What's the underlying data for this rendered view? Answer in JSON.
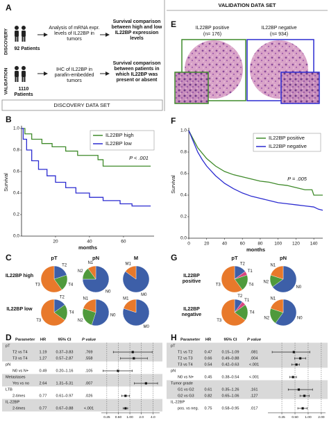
{
  "panel_labels": [
    "A",
    "B",
    "C",
    "D",
    "E",
    "F",
    "G",
    "H"
  ],
  "workflow": {
    "discovery": {
      "label": "DISCOVERY",
      "patients": "92 Patients",
      "step1": "Analysis of mRNA expr. levels of IL22BP in tumors",
      "step2": "Survival comparison between high and low IL22BP expression levels"
    },
    "validation": {
      "label": "VALIDATION",
      "patients": "1110 Patients",
      "step1": "IHC of IL22BP in parafin-embedded tumors",
      "step2": "Survival comparison between patients in which IL22BP was present or absent"
    }
  },
  "headers": {
    "discovery": "DISCOVERY DATA SET",
    "validation": "VALIDATION DATA SET"
  },
  "images": {
    "positive": {
      "label": "IL22BP positive",
      "n": "(n= 176)"
    },
    "negative": {
      "label": "IL22BP negative",
      "n": "(n= 934)"
    }
  },
  "chart_data": [
    {
      "type": "line",
      "x_label": "months",
      "y_label": "Survival",
      "annotation": "P < .001",
      "legend": "upper right",
      "xlim": [
        0,
        78
      ],
      "xticks": [
        20,
        40,
        60
      ],
      "ylim": [
        0,
        1
      ],
      "yticks": [
        {
          "value": 0,
          "label": "0.0"
        },
        {
          "value": 0.2,
          "label": "0.2"
        },
        {
          "value": 0.4,
          "label": "0.4"
        },
        {
          "value": 0.6,
          "label": "0.6"
        },
        {
          "value": 0.8,
          "label": "0.8"
        },
        {
          "value": 1,
          "label": "1.0"
        }
      ],
      "series": [
        {
          "name": "IL22BP high",
          "color": "#3f8a2a",
          "x": [
            0,
            2,
            2,
            6,
            6,
            12,
            12,
            18,
            18,
            26,
            26,
            33,
            33,
            45,
            45,
            48,
            48,
            76
          ],
          "values": [
            1,
            1,
            0.95,
            0.95,
            0.9,
            0.9,
            0.86,
            0.86,
            0.83,
            0.83,
            0.79,
            0.79,
            0.75,
            0.75,
            0.71,
            0.71,
            0.65,
            0.65
          ]
        },
        {
          "name": "IL22BP low",
          "color": "#2b2bd0",
          "x": [
            0,
            1,
            1,
            3,
            3,
            6,
            6,
            10,
            10,
            15,
            15,
            20,
            20,
            26,
            26,
            32,
            32,
            40,
            40,
            48,
            48,
            58,
            58,
            65,
            65,
            76
          ],
          "values": [
            1,
            1,
            0.9,
            0.9,
            0.8,
            0.8,
            0.7,
            0.7,
            0.62,
            0.62,
            0.56,
            0.56,
            0.5,
            0.5,
            0.45,
            0.45,
            0.4,
            0.4,
            0.36,
            0.36,
            0.33,
            0.33,
            0.3,
            0.3,
            0.28,
            0.28
          ]
        }
      ]
    },
    {
      "type": "line",
      "x_label": "months",
      "y_label": "Survival",
      "annotation": "P = .005",
      "legend": "upper right",
      "xlim": [
        0,
        150
      ],
      "xticks": [
        0,
        20,
        40,
        60,
        80,
        100,
        120,
        140
      ],
      "ylim": [
        0,
        1
      ],
      "yticks": [
        {
          "value": 0,
          "label": "0.0"
        },
        {
          "value": 0.2,
          "label": "0.2"
        },
        {
          "value": 0.4,
          "label": "0.4"
        },
        {
          "value": 0.6,
          "label": "0.6"
        },
        {
          "value": 0.8,
          "label": "0.8"
        },
        {
          "value": 1,
          "label": "1.0"
        }
      ],
      "series": [
        {
          "name": "IL22BP positive",
          "color": "#3f8a2a",
          "x": [
            0,
            5,
            10,
            15,
            20,
            30,
            40,
            50,
            60,
            70,
            80,
            90,
            100,
            110,
            120,
            130,
            138,
            140,
            150
          ],
          "values": [
            1,
            0.92,
            0.84,
            0.79,
            0.74,
            0.67,
            0.62,
            0.59,
            0.57,
            0.55,
            0.53,
            0.52,
            0.5,
            0.49,
            0.47,
            0.45,
            0.45,
            0.4,
            0.4
          ]
        },
        {
          "name": "IL22BP negative",
          "color": "#2b2bd0",
          "x": [
            0,
            5,
            10,
            15,
            20,
            30,
            40,
            50,
            60,
            70,
            80,
            90,
            100,
            110,
            120,
            130,
            140,
            145,
            150
          ],
          "values": [
            1,
            0.9,
            0.8,
            0.73,
            0.67,
            0.58,
            0.51,
            0.46,
            0.42,
            0.39,
            0.37,
            0.35,
            0.33,
            0.32,
            0.31,
            0.3,
            0.29,
            0.27,
            0.26
          ]
        }
      ]
    },
    {
      "type": "pie",
      "columns": [
        "pT",
        "pN",
        "M"
      ],
      "rows": [
        {
          "name": "IL22BP high",
          "pies": [
            {
              "categories": [
                "T2",
                "T4",
                "T3"
              ],
              "values": [
                20,
                20,
                60
              ],
              "colors": [
                "#3d5fa8",
                "#4f9a3c",
                "#e8792b"
              ]
            },
            {
              "categories": [
                "N0",
                "N2",
                "N1"
              ],
              "values": [
                75,
                15,
                10
              ],
              "colors": [
                "#3d5fa8",
                "#4f9a3c",
                "#e8792b"
              ]
            },
            {
              "categories": [
                "M0",
                "M1"
              ],
              "values": [
                85,
                15
              ],
              "colors": [
                "#3d5fa8",
                "#e8792b"
              ]
            }
          ]
        },
        {
          "name": "IL22BP low",
          "pies": [
            {
              "categories": [
                "T2",
                "T4",
                "T3"
              ],
              "values": [
                15,
                20,
                65
              ],
              "colors": [
                "#3d5fa8",
                "#4f9a3c",
                "#e8792b"
              ]
            },
            {
              "categories": [
                "N0",
                "N2",
                "N1"
              ],
              "values": [
                55,
                25,
                20
              ],
              "colors": [
                "#3d5fa8",
                "#4f9a3c",
                "#e8792b"
              ]
            },
            {
              "categories": [
                "M0",
                "M1"
              ],
              "values": [
                80,
                20
              ],
              "colors": [
                "#3d5fa8",
                "#e8792b"
              ]
            }
          ]
        }
      ]
    },
    {
      "type": "pie",
      "columns": [
        "pT",
        "pN"
      ],
      "rows": [
        {
          "name": "IL22BP positive",
          "pies": [
            {
              "categories": [
                "T2",
                "T1",
                "T4",
                "T3"
              ],
              "values": [
                15,
                5,
                20,
                60
              ],
              "colors": [
                "#3d5fa8",
                "#d9457f",
                "#4f9a3c",
                "#e8792b"
              ]
            },
            {
              "categories": [
                "N0",
                "N2",
                "N1"
              ],
              "values": [
                65,
                15,
                20
              ],
              "colors": [
                "#3d5fa8",
                "#4f9a3c",
                "#e8792b"
              ]
            }
          ]
        },
        {
          "name": "IL22BP negative",
          "pies": [
            {
              "categories": [
                "T2",
                "T1",
                "T4",
                "T3"
              ],
              "values": [
                10,
                5,
                20,
                65
              ],
              "colors": [
                "#3d5fa8",
                "#d9457f",
                "#4f9a3c",
                "#e8792b"
              ]
            },
            {
              "categories": [
                "N0",
                "N2",
                "N1"
              ],
              "values": [
                60,
                20,
                20
              ],
              "colors": [
                "#3d5fa8",
                "#4f9a3c",
                "#e8792b"
              ]
            }
          ]
        }
      ]
    },
    {
      "type": "forest",
      "columns": [
        "Parameter",
        "HR",
        "95% CI",
        "P value"
      ],
      "log": true,
      "grid": true,
      "xlim": [
        0.18,
        6
      ],
      "xticks": [
        {
          "value": 0.25,
          "label": "0.25"
        },
        {
          "value": 0.5,
          "label": "0.50"
        },
        {
          "value": 1,
          "label": "1.00"
        },
        {
          "value": 2,
          "label": "2.0"
        },
        {
          "value": 4,
          "label": "4.0"
        }
      ],
      "groups": [
        {
          "name": "pT",
          "rows": [
            {
              "label": "T2 vs T4",
              "hr": 1.19,
              "ci_label": "0.37–3.83",
              "ci": [
                0.37,
                3.83
              ],
              "p": ".769"
            },
            {
              "label": "T3 vs T4",
              "hr": 1.27,
              "ci_label": "0.57–2.87",
              "ci": [
                0.57,
                2.87
              ],
              "p": ".558"
            }
          ]
        },
        {
          "name": "pN",
          "rows": [
            {
              "label": "N0 vs N+",
              "hr": 0.49,
              "ci_label": "0.20–1.16",
              "ci": [
                0.2,
                1.16
              ],
              "p": ".105"
            }
          ]
        },
        {
          "name": "Metastases",
          "rows": [
            {
              "label": "Yes vs no",
              "hr": 2.64,
              "ci_label": "1.31–5.31",
              "ci": [
                1.31,
                5.31
              ],
              "p": ".007"
            }
          ]
        },
        {
          "name": "LTB",
          "rows": [
            {
              "label": "2-times",
              "hr": 0.77,
              "ci_label": "0.61–0.97",
              "ci": [
                0.61,
                0.97
              ],
              "p": ".026"
            }
          ]
        },
        {
          "name": "IL-22BP",
          "rows": [
            {
              "label": "2-times",
              "hr": 0.77,
              "ci_label": "0.67–0.88",
              "ci": [
                0.67,
                0.88
              ],
              "p": "<.001"
            }
          ]
        }
      ]
    },
    {
      "type": "forest",
      "columns": [
        "Parameter",
        "HR",
        "95% CI",
        "P value"
      ],
      "log": true,
      "grid": true,
      "xlim": [
        0.12,
        2.5
      ],
      "xticks": [
        {
          "value": 0.25,
          "label": "0.25"
        },
        {
          "value": 0.5,
          "label": "0.50"
        },
        {
          "value": 1,
          "label": "1.00"
        },
        {
          "value": 2,
          "label": "2.00"
        }
      ],
      "groups": [
        {
          "name": "pT",
          "rows": [
            {
              "label": "T1 vs T2",
              "hr": 0.47,
              "ci_label": "0.15–1.09",
              "ci": [
                0.15,
                1.09
              ],
              "p": ".081"
            },
            {
              "label": "T2 vs T3",
              "hr": 0.66,
              "ci_label": "0.49–0.88",
              "ci": [
                0.49,
                0.88
              ],
              "p": ".004"
            },
            {
              "label": "T3 vs T4",
              "hr": 0.54,
              "ci_label": "0.42–0.63",
              "ci": [
                0.42,
                0.63
              ],
              "p": "<.001"
            }
          ]
        },
        {
          "name": "pN",
          "rows": [
            {
              "label": "N0 vs N+",
              "hr": 0.45,
              "ci_label": "0.38–0.54",
              "ci": [
                0.38,
                0.54
              ],
              "p": "<.001"
            }
          ]
        },
        {
          "name": "Tumor grade",
          "rows": [
            {
              "label": "G1 vs G2",
              "hr": 0.61,
              "ci_label": "0.35–1.26",
              "ci": [
                0.35,
                1.26
              ],
              "p": ".161"
            },
            {
              "label": "G2 vs G3",
              "hr": 0.82,
              "ci_label": "0.65–1.06",
              "ci": [
                0.65,
                1.06
              ],
              "p": ".127"
            }
          ]
        },
        {
          "name": "IL-22BP",
          "rows": [
            {
              "label": "pos. vs neg.",
              "hr": 0.75,
              "ci_label": "0.58–0.95",
              "ci": [
                0.58,
                0.95
              ],
              "p": ".017"
            }
          ]
        }
      ]
    }
  ]
}
